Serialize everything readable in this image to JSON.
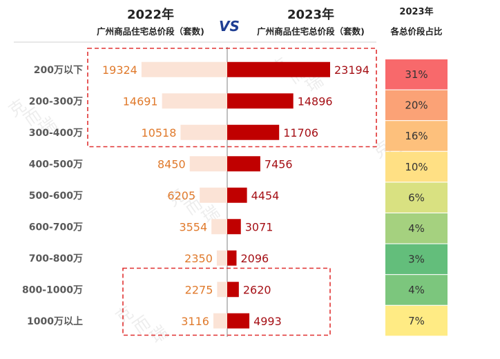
{
  "header": {
    "title_2022": "2022年",
    "subtitle_2022": "广州商品住宅总价段（套数)",
    "vs_label": "VS",
    "title_2023": "2023年",
    "subtitle_2023": "广州商品住宅总价段（套数)",
    "share_title": "2023年",
    "share_subtitle": "各总价段占比"
  },
  "watermark": "克而瑞",
  "colors": {
    "bar_2022": "#FBE3D6",
    "bar_2023": "#C00000",
    "label_2022": "#E07A2C",
    "label_2023": "#A50F15",
    "highlight_box": "#E03030",
    "vs": "#1F3E93"
  },
  "chart_data": {
    "type": "bar",
    "orientation": "horizontal-diverging",
    "categories": [
      "200万以下",
      "200-300万",
      "300-400万",
      "400-500万",
      "500-600万",
      "600-700万",
      "700-800万",
      "800-1000万",
      "1000万以上"
    ],
    "series": [
      {
        "name": "2022年",
        "values": [
          19324,
          14691,
          10518,
          8450,
          6205,
          3554,
          2350,
          2275,
          3116
        ]
      },
      {
        "name": "2023年",
        "values": [
          23194,
          14896,
          11706,
          7456,
          4454,
          3071,
          2096,
          2620,
          4993
        ]
      }
    ],
    "share_2023": {
      "labels": [
        "31%",
        "20%",
        "16%",
        "10%",
        "6%",
        "4%",
        "3%",
        "4%",
        "7%"
      ],
      "colors": [
        "#F8696B",
        "#FBA276",
        "#FDC07C",
        "#FFE084",
        "#D9E181",
        "#A5D17F",
        "#63BE7B",
        "#7CC67D",
        "#FFEB84"
      ]
    },
    "highlight_groups": [
      [
        0,
        2
      ],
      [
        7,
        8
      ]
    ]
  }
}
